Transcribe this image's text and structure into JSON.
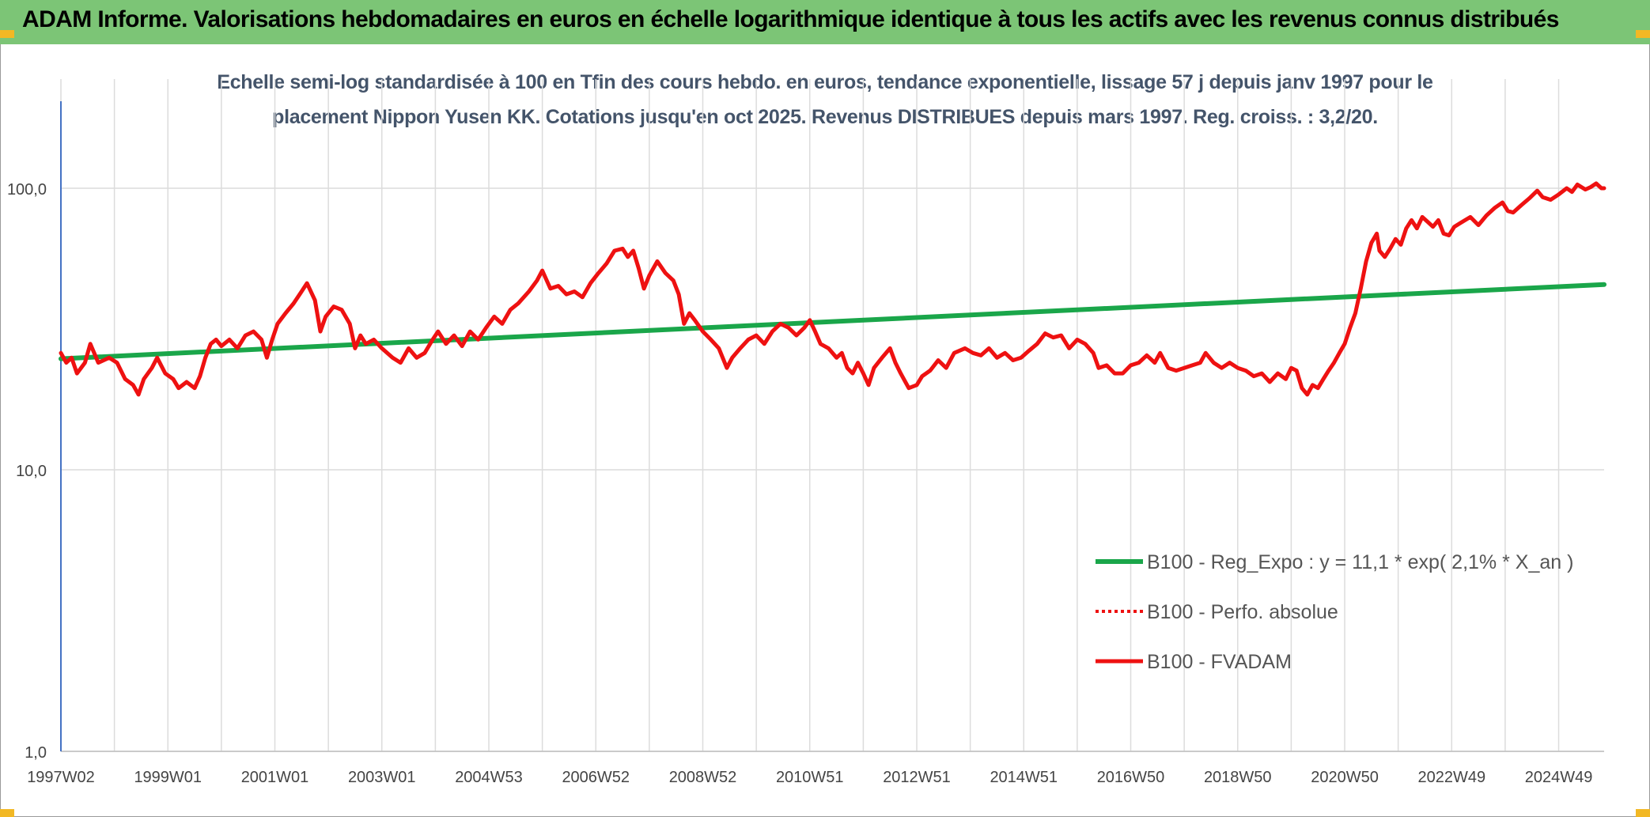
{
  "header": {
    "title": "ADAM Informe. Valorisations hebdomadaires en euros en échelle logarithmique identique à tous les actifs avec les revenus connus distribués"
  },
  "colors": {
    "banner": "#7cc576",
    "corner": "#f2b824",
    "trend": "#1aa64a",
    "fvadam": "#ee1111",
    "perfo": "#ee1111",
    "grid": "#dcdcdc",
    "axis": "#4472c4",
    "subtitle": "#44546a"
  },
  "chart_data": {
    "type": "line",
    "title_line1": "Echelle semi-log standardisée à 100 en Tfin des cours hebdo. en euros, tendance exponentielle, lissage 57 j depuis janv 1997 pour le",
    "title_line2": "placement Nippon Yusen KK. Cotations jusqu'en oct 2025. Revenus DISTRIBUES depuis mars 1997. Reg. croiss. : 3,2/20.",
    "yscale": "log",
    "ylim": [
      1,
      200
    ],
    "y_ticks": [
      {
        "value": 1,
        "label": "1,0"
      },
      {
        "value": 10,
        "label": "10,0"
      },
      {
        "value": 100,
        "label": "100,0"
      }
    ],
    "xlim": [
      1997.0,
      2025.85
    ],
    "x_ticks": [
      {
        "value": 1997.0,
        "label": "1997W02"
      },
      {
        "value": 1999.0,
        "label": "1999W01"
      },
      {
        "value": 2001.0,
        "label": "2001W01"
      },
      {
        "value": 2003.0,
        "label": "2003W01"
      },
      {
        "value": 2005.0,
        "label": "2004W53"
      },
      {
        "value": 2007.0,
        "label": "2006W52"
      },
      {
        "value": 2009.0,
        "label": "2008W52"
      },
      {
        "value": 2011.0,
        "label": "2010W51"
      },
      {
        "value": 2013.0,
        "label": "2012W51"
      },
      {
        "value": 2015.0,
        "label": "2014W51"
      },
      {
        "value": 2017.0,
        "label": "2016W50"
      },
      {
        "value": 2019.0,
        "label": "2018W50"
      },
      {
        "value": 2021.0,
        "label": "2020W50"
      },
      {
        "value": 2023.0,
        "label": "2022W49"
      },
      {
        "value": 2025.0,
        "label": "2024W49"
      }
    ],
    "legend_position": "bottom-right",
    "series": [
      {
        "name": "B100 - Reg_Expo : y = 11,1 * exp( 2,1% *  X_an )",
        "style": "solid-green",
        "points": [
          [
            1997.0,
            24.8
          ],
          [
            2025.85,
            45.5
          ]
        ]
      },
      {
        "name": "B100 - Perfo. absolue",
        "style": "dotted-red",
        "points": []
      },
      {
        "name": "B100 - FVADAM",
        "style": "solid-red",
        "points": [
          [
            1997.0,
            26
          ],
          [
            1997.1,
            24
          ],
          [
            1997.2,
            25
          ],
          [
            1997.3,
            22
          ],
          [
            1997.45,
            24
          ],
          [
            1997.55,
            28
          ],
          [
            1997.7,
            24
          ],
          [
            1997.9,
            25
          ],
          [
            1998.05,
            24
          ],
          [
            1998.2,
            21
          ],
          [
            1998.35,
            20
          ],
          [
            1998.45,
            18.5
          ],
          [
            1998.55,
            21
          ],
          [
            1998.7,
            23
          ],
          [
            1998.8,
            25
          ],
          [
            1998.95,
            22
          ],
          [
            1999.1,
            21
          ],
          [
            1999.2,
            19.5
          ],
          [
            1999.35,
            20.5
          ],
          [
            1999.5,
            19.5
          ],
          [
            1999.6,
            21.5
          ],
          [
            1999.7,
            25
          ],
          [
            1999.8,
            28
          ],
          [
            1999.9,
            29
          ],
          [
            2000.0,
            27.5
          ],
          [
            2000.15,
            29
          ],
          [
            2000.3,
            27
          ],
          [
            2000.45,
            30
          ],
          [
            2000.6,
            31
          ],
          [
            2000.75,
            29
          ],
          [
            2000.85,
            25
          ],
          [
            2000.95,
            29
          ],
          [
            2001.05,
            33
          ],
          [
            2001.2,
            36
          ],
          [
            2001.35,
            39
          ],
          [
            2001.5,
            43
          ],
          [
            2001.6,
            46
          ],
          [
            2001.75,
            40
          ],
          [
            2001.85,
            31
          ],
          [
            2001.95,
            35
          ],
          [
            2002.1,
            38
          ],
          [
            2002.25,
            37
          ],
          [
            2002.4,
            33
          ],
          [
            2002.5,
            27
          ],
          [
            2002.6,
            30
          ],
          [
            2002.7,
            28
          ],
          [
            2002.85,
            29
          ],
          [
            2003.0,
            27
          ],
          [
            2003.2,
            25
          ],
          [
            2003.35,
            24
          ],
          [
            2003.5,
            27
          ],
          [
            2003.65,
            25
          ],
          [
            2003.8,
            26
          ],
          [
            2003.95,
            29
          ],
          [
            2004.05,
            31
          ],
          [
            2004.2,
            28
          ],
          [
            2004.35,
            30
          ],
          [
            2004.5,
            27.5
          ],
          [
            2004.65,
            31
          ],
          [
            2004.8,
            29
          ],
          [
            2004.95,
            32
          ],
          [
            2005.1,
            35
          ],
          [
            2005.25,
            33
          ],
          [
            2005.4,
            37
          ],
          [
            2005.55,
            39
          ],
          [
            2005.75,
            43
          ],
          [
            2005.9,
            47
          ],
          [
            2006.0,
            51
          ],
          [
            2006.15,
            44
          ],
          [
            2006.3,
            45
          ],
          [
            2006.45,
            42
          ],
          [
            2006.6,
            43
          ],
          [
            2006.75,
            41
          ],
          [
            2006.9,
            46
          ],
          [
            2007.05,
            50
          ],
          [
            2007.2,
            54
          ],
          [
            2007.35,
            60
          ],
          [
            2007.5,
            61
          ],
          [
            2007.6,
            57
          ],
          [
            2007.7,
            60
          ],
          [
            2007.8,
            52
          ],
          [
            2007.9,
            44
          ],
          [
            2008.0,
            49
          ],
          [
            2008.15,
            55
          ],
          [
            2008.3,
            50
          ],
          [
            2008.45,
            47
          ],
          [
            2008.55,
            42
          ],
          [
            2008.65,
            33
          ],
          [
            2008.75,
            36
          ],
          [
            2008.85,
            34
          ],
          [
            2009.0,
            31
          ],
          [
            2009.15,
            29
          ],
          [
            2009.3,
            27
          ],
          [
            2009.45,
            23
          ],
          [
            2009.55,
            25
          ],
          [
            2009.7,
            27
          ],
          [
            2009.85,
            29
          ],
          [
            2010.0,
            30
          ],
          [
            2010.15,
            28
          ],
          [
            2010.3,
            31
          ],
          [
            2010.45,
            33
          ],
          [
            2010.6,
            32
          ],
          [
            2010.75,
            30
          ],
          [
            2010.9,
            32
          ],
          [
            2011.0,
            34
          ],
          [
            2011.1,
            31
          ],
          [
            2011.2,
            28
          ],
          [
            2011.35,
            27
          ],
          [
            2011.5,
            25
          ],
          [
            2011.6,
            26
          ],
          [
            2011.7,
            23
          ],
          [
            2011.8,
            22
          ],
          [
            2011.9,
            24
          ],
          [
            2012.0,
            22
          ],
          [
            2012.1,
            20
          ],
          [
            2012.2,
            23
          ],
          [
            2012.35,
            25
          ],
          [
            2012.5,
            27
          ],
          [
            2012.6,
            24
          ],
          [
            2012.7,
            22
          ],
          [
            2012.85,
            19.5
          ],
          [
            2013.0,
            20
          ],
          [
            2013.1,
            21.5
          ],
          [
            2013.25,
            22.5
          ],
          [
            2013.4,
            24.5
          ],
          [
            2013.55,
            23
          ],
          [
            2013.7,
            26
          ],
          [
            2013.9,
            27
          ],
          [
            2014.05,
            26
          ],
          [
            2014.2,
            25.5
          ],
          [
            2014.35,
            27
          ],
          [
            2014.5,
            25
          ],
          [
            2014.65,
            26
          ],
          [
            2014.8,
            24.5
          ],
          [
            2014.95,
            25
          ],
          [
            2015.1,
            26.5
          ],
          [
            2015.25,
            28
          ],
          [
            2015.4,
            30.5
          ],
          [
            2015.55,
            29.5
          ],
          [
            2015.7,
            30
          ],
          [
            2015.85,
            27
          ],
          [
            2016.0,
            29
          ],
          [
            2016.15,
            28
          ],
          [
            2016.3,
            26
          ],
          [
            2016.4,
            23
          ],
          [
            2016.55,
            23.5
          ],
          [
            2016.7,
            22
          ],
          [
            2016.85,
            22
          ],
          [
            2017.0,
            23.5
          ],
          [
            2017.15,
            24
          ],
          [
            2017.3,
            25.5
          ],
          [
            2017.45,
            24
          ],
          [
            2017.55,
            26
          ],
          [
            2017.7,
            23
          ],
          [
            2017.85,
            22.5
          ],
          [
            2018.0,
            23
          ],
          [
            2018.15,
            23.5
          ],
          [
            2018.3,
            24
          ],
          [
            2018.4,
            26
          ],
          [
            2018.55,
            24
          ],
          [
            2018.7,
            23
          ],
          [
            2018.85,
            24
          ],
          [
            2019.0,
            23
          ],
          [
            2019.15,
            22.5
          ],
          [
            2019.3,
            21.5
          ],
          [
            2019.45,
            22
          ],
          [
            2019.6,
            20.5
          ],
          [
            2019.75,
            22
          ],
          [
            2019.9,
            21
          ],
          [
            2020.0,
            23
          ],
          [
            2020.1,
            22.5
          ],
          [
            2020.2,
            19.5
          ],
          [
            2020.3,
            18.5
          ],
          [
            2020.4,
            20
          ],
          [
            2020.5,
            19.5
          ],
          [
            2020.6,
            21
          ],
          [
            2020.7,
            22.5
          ],
          [
            2020.8,
            24
          ],
          [
            2020.9,
            26
          ],
          [
            2021.0,
            28
          ],
          [
            2021.1,
            32
          ],
          [
            2021.2,
            36
          ],
          [
            2021.3,
            44
          ],
          [
            2021.4,
            55
          ],
          [
            2021.5,
            64
          ],
          [
            2021.6,
            69
          ],
          [
            2021.65,
            60
          ],
          [
            2021.75,
            57
          ],
          [
            2021.85,
            61
          ],
          [
            2021.95,
            66
          ],
          [
            2022.05,
            63
          ],
          [
            2022.15,
            72
          ],
          [
            2022.25,
            77
          ],
          [
            2022.35,
            72
          ],
          [
            2022.45,
            79
          ],
          [
            2022.55,
            76
          ],
          [
            2022.65,
            73
          ],
          [
            2022.75,
            77
          ],
          [
            2022.85,
            69
          ],
          [
            2022.95,
            68
          ],
          [
            2023.05,
            73
          ],
          [
            2023.15,
            75
          ],
          [
            2023.25,
            77
          ],
          [
            2023.35,
            79
          ],
          [
            2023.5,
            74
          ],
          [
            2023.65,
            80
          ],
          [
            2023.8,
            85
          ],
          [
            2023.95,
            89
          ],
          [
            2024.05,
            83
          ],
          [
            2024.15,
            82
          ],
          [
            2024.3,
            87
          ],
          [
            2024.45,
            92
          ],
          [
            2024.6,
            98
          ],
          [
            2024.7,
            93
          ],
          [
            2024.85,
            91
          ],
          [
            2025.0,
            95
          ],
          [
            2025.15,
            100
          ],
          [
            2025.25,
            97
          ],
          [
            2025.35,
            103
          ],
          [
            2025.5,
            99
          ],
          [
            2025.6,
            101
          ],
          [
            2025.7,
            104
          ],
          [
            2025.8,
            100
          ],
          [
            2025.85,
            100
          ]
        ]
      }
    ]
  }
}
